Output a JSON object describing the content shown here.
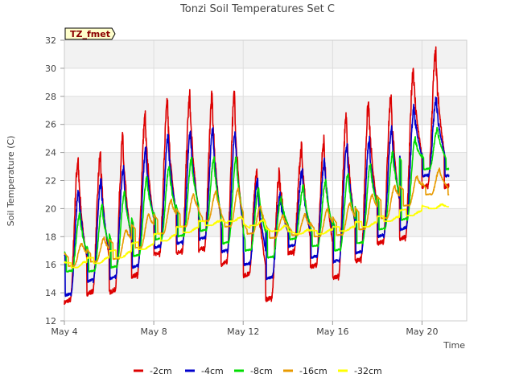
{
  "chart_data": {
    "type": "line",
    "title": "Tonzi Soil Temperatures Set C",
    "xlabel": "Time",
    "ylabel": "Soil Temperature (C)",
    "badge": "TZ_fmet",
    "x_ticks": [
      {
        "day": 4,
        "label": "May 4"
      },
      {
        "day": 8,
        "label": "May 8"
      },
      {
        "day": 12,
        "label": "May 12"
      },
      {
        "day": 16,
        "label": "May 16"
      },
      {
        "day": 20,
        "label": "May 20"
      }
    ],
    "xlim": [
      4,
      22
    ],
    "ylim": [
      12,
      32
    ],
    "y_ticks": [
      12,
      14,
      16,
      18,
      20,
      22,
      24,
      26,
      28,
      30,
      32
    ],
    "grid": true,
    "legend_position": "bottom",
    "series": [
      {
        "name": "-2cm",
        "color": "#dd0000",
        "peaks": [
          23.5,
          23.8,
          25.0,
          26.5,
          27.5,
          28.0,
          28.0,
          28.1,
          22.8,
          22.5,
          24.3,
          24.8,
          26.5,
          27.5,
          28.0,
          30.0,
          31.0
        ],
        "troughs": [
          13.3,
          13.9,
          14.0,
          15.1,
          16.7,
          16.8,
          17.0,
          16.0,
          15.2,
          13.5,
          16.8,
          15.8,
          15.0,
          16.2,
          17.5,
          17.8,
          21.5
        ]
      },
      {
        "name": "-4cm",
        "color": "#0000cc",
        "peaks": [
          21.3,
          22.0,
          23.0,
          24.2,
          25.2,
          25.5,
          25.6,
          25.5,
          22.0,
          21.0,
          22.7,
          23.5,
          24.5,
          24.9,
          25.8,
          27.2,
          27.8
        ],
        "troughs": [
          13.8,
          14.8,
          15.0,
          15.8,
          17.2,
          17.5,
          17.8,
          16.9,
          16.0,
          15.0,
          17.3,
          16.5,
          16.2,
          16.8,
          18.0,
          18.5,
          22.3
        ]
      },
      {
        "name": "-8cm",
        "color": "#00dd00",
        "peaks": [
          19.6,
          20.2,
          21.2,
          22.2,
          23.0,
          23.6,
          23.6,
          23.7,
          21.5,
          20.8,
          21.6,
          22.0,
          22.5,
          23.2,
          24.0,
          25.0,
          25.7
        ],
        "troughs": [
          15.5,
          15.5,
          15.8,
          16.6,
          17.8,
          18.0,
          18.4,
          17.5,
          17.0,
          16.5,
          17.8,
          17.3,
          17.0,
          17.5,
          18.5,
          19.2,
          22.8
        ]
      },
      {
        "name": "-16cm",
        "color": "#e89a00",
        "peaks": [
          17.5,
          17.9,
          18.5,
          19.6,
          20.6,
          21.0,
          21.2,
          21.4,
          20.2,
          19.5,
          19.6,
          20.0,
          20.4,
          21.0,
          21.6,
          22.3,
          22.8
        ],
        "troughs": [
          15.9,
          16.2,
          16.4,
          17.2,
          18.2,
          18.7,
          19.1,
          18.7,
          18.2,
          17.9,
          18.1,
          18.0,
          18.1,
          18.5,
          19.3,
          20.2,
          21.0
        ]
      },
      {
        "name": "-32cm",
        "color": "#ffff00",
        "peaks": [
          16.2,
          16.5,
          16.9,
          17.4,
          18.1,
          18.6,
          19.1,
          19.4,
          19.2,
          18.8,
          18.5,
          18.5,
          18.7,
          19.0,
          19.4,
          19.8,
          20.3
        ],
        "troughs": [
          15.8,
          16.1,
          16.5,
          17.1,
          17.7,
          18.3,
          18.8,
          19.1,
          18.8,
          18.4,
          18.2,
          18.2,
          18.4,
          18.7,
          19.1,
          19.5,
          20.0
        ]
      }
    ]
  }
}
